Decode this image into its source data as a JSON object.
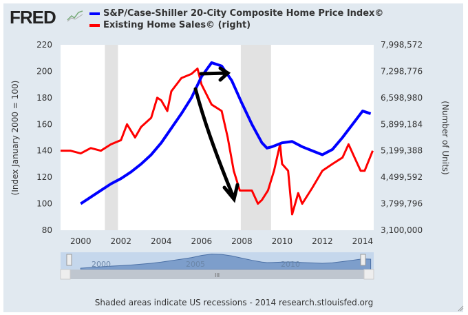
{
  "logo": "FRED",
  "footer": "Shaded areas indicate US recessions - 2014 research.stlouisfed.org",
  "chart_data": {
    "type": "line",
    "legend": [
      "S&P/Case-Shiller 20-City Composite Home Price Index©",
      "Existing Home Sales© (right)"
    ],
    "ylabel": "(Index January 2000 = 100)",
    "y2label": "(Number of Units)",
    "xlim": [
      1999,
      2014.55
    ],
    "ylim": [
      80,
      220
    ],
    "y2lim": [
      3100000,
      7998572
    ],
    "xticks": [
      "2000",
      "2002",
      "2004",
      "2006",
      "2008",
      "2010",
      "2012",
      "2014"
    ],
    "yticks": [
      "80",
      "100",
      "120",
      "140",
      "160",
      "180",
      "200",
      "220"
    ],
    "y2ticks": [
      "3,100,000",
      "3,799,796",
      "4,499,592",
      "5,199,388",
      "5,899,184",
      "6,598,980",
      "7,298,776",
      "7,998,572"
    ],
    "grid": false,
    "legend_position": "top",
    "recessions": [
      [
        2001.2,
        2001.85
      ],
      [
        2007.95,
        2009.45
      ]
    ],
    "navigator_labels": [
      "2000",
      "2005",
      "2010"
    ],
    "series": [
      {
        "name": "S&P/Case-Shiller 20-City Composite Home Price Index©",
        "color": "#0000ff",
        "axis": "left",
        "x": [
          2000,
          2000.5,
          2001,
          2001.5,
          2002,
          2002.5,
          2003,
          2003.5,
          2004,
          2004.5,
          2005,
          2005.5,
          2006,
          2006.5,
          2007,
          2007.5,
          2008,
          2008.5,
          2009,
          2009.25,
          2009.5,
          2010,
          2010.5,
          2011,
          2011.5,
          2012,
          2012.5,
          2013,
          2013.5,
          2014,
          2014.4
        ],
        "y": [
          100,
          105,
          110,
          115,
          119,
          124,
          130,
          137,
          146,
          157,
          168,
          180,
          196,
          206.5,
          204,
          193,
          176,
          160,
          146,
          142,
          143,
          146,
          147,
          143,
          140,
          137,
          141,
          150,
          160,
          170,
          168
        ]
      },
      {
        "name": "Existing Home Sales© (right)",
        "color": "#ff0000",
        "axis": "right",
        "x": [
          1999,
          1999.5,
          2000,
          2000.5,
          2001,
          2001.5,
          2002,
          2002.3,
          2002.7,
          2003,
          2003.5,
          2003.8,
          2004,
          2004.3,
          2004.5,
          2005,
          2005.5,
          2005.8,
          2006,
          2006.5,
          2007,
          2007.3,
          2007.6,
          2007.9,
          2008.5,
          2008.8,
          2009,
          2009.3,
          2009.6,
          2009.9,
          2010,
          2010.3,
          2010.5,
          2010.8,
          2011,
          2011.5,
          2012,
          2012.5,
          2013,
          2013.3,
          2013.6,
          2013.9,
          2014.1,
          2014.5
        ],
        "y": [
          5200000,
          5200000,
          5130000,
          5270000,
          5200000,
          5370000,
          5480000,
          5900000,
          5550000,
          5830000,
          6070000,
          6600000,
          6530000,
          6250000,
          6770000,
          7120000,
          7230000,
          7370000,
          6950000,
          6420000,
          6250000,
          5550000,
          4670000,
          4150000,
          4150000,
          3800000,
          3900000,
          4150000,
          4670000,
          5370000,
          4850000,
          4670000,
          3520000,
          4080000,
          3800000,
          4220000,
          4670000,
          4850000,
          5020000,
          5370000,
          5020000,
          4670000,
          4670000,
          5200000
        ]
      }
    ]
  }
}
